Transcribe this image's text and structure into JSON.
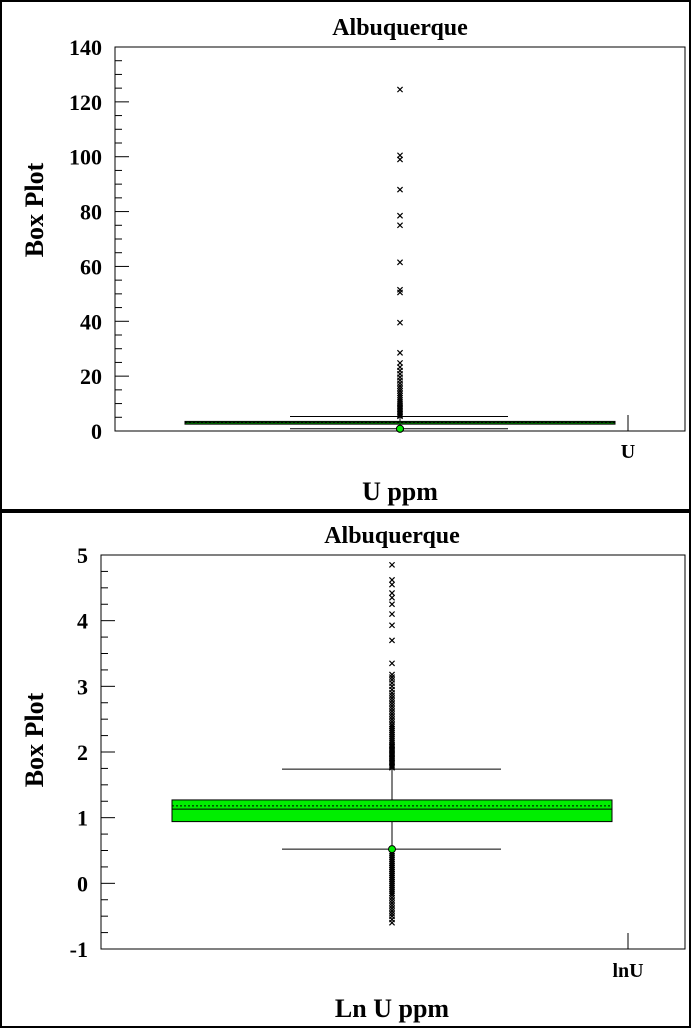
{
  "chart_data": [
    {
      "type": "box",
      "title": "Albuquerque",
      "ylabel": "Box Plot",
      "xlabel": "U ppm",
      "category": "U",
      "ylim": [
        0,
        140
      ],
      "yticks": [
        0,
        20,
        40,
        60,
        80,
        100,
        120,
        140
      ],
      "box": {
        "q1": 2.5,
        "median": 3.0,
        "mean": 3.1,
        "q3": 3.5,
        "whisker_low": 0.8,
        "whisker_high": 5.3
      },
      "box_color": "#00ee00",
      "outliers_high": [
        5.4,
        5.8,
        6.3,
        6.8,
        7.4,
        8.0,
        8.6,
        9.2,
        9.9,
        10.6,
        11.3,
        12.1,
        12.9,
        13.7,
        14.6,
        15.5,
        16.4,
        17.4,
        18.5,
        19.6,
        20.8,
        22.0,
        23.3,
        24.8,
        28.5,
        39.5,
        50.5,
        51.5,
        61.5,
        75.0,
        78.5,
        88.0,
        99.0,
        100.5,
        124.5
      ],
      "outliers_low": [
        0.8
      ]
    },
    {
      "type": "box",
      "title": "Albuquerque",
      "ylabel": "Box Plot",
      "xlabel": "Ln U ppm",
      "category": "lnU",
      "ylim": [
        -1,
        5
      ],
      "yticks": [
        -1,
        0,
        1,
        2,
        3,
        4,
        5
      ],
      "box": {
        "q1": 0.94,
        "median": 1.13,
        "mean": 1.18,
        "q3": 1.27,
        "whisker_low": 0.52,
        "whisker_high": 1.74
      },
      "box_color": "#00ee00",
      "outliers_high": [
        1.76,
        1.78,
        1.8,
        1.82,
        1.84,
        1.86,
        1.88,
        1.9,
        1.92,
        1.94,
        1.96,
        1.98,
        2.0,
        2.02,
        2.04,
        2.06,
        2.08,
        2.1,
        2.12,
        2.15,
        2.18,
        2.21,
        2.24,
        2.27,
        2.3,
        2.33,
        2.36,
        2.39,
        2.42,
        2.46,
        2.5,
        2.54,
        2.58,
        2.62,
        2.66,
        2.7,
        2.74,
        2.78,
        2.82,
        2.86,
        2.9,
        2.95,
        3.0,
        3.05,
        3.1,
        3.14,
        3.18,
        3.35,
        3.7,
        3.93,
        4.1,
        4.25,
        4.35,
        4.42,
        4.55,
        4.62,
        4.85
      ],
      "outliers_low": [
        0.48,
        0.45,
        0.42,
        0.39,
        0.36,
        0.33,
        0.3,
        0.27,
        0.24,
        0.21,
        0.18,
        0.15,
        0.12,
        0.09,
        0.06,
        0.03,
        0.0,
        -0.03,
        -0.06,
        -0.09,
        -0.12,
        -0.15,
        -0.18,
        -0.22,
        -0.26,
        -0.3,
        -0.34,
        -0.38,
        -0.42,
        -0.46,
        -0.5,
        -0.55,
        -0.6
      ]
    }
  ]
}
